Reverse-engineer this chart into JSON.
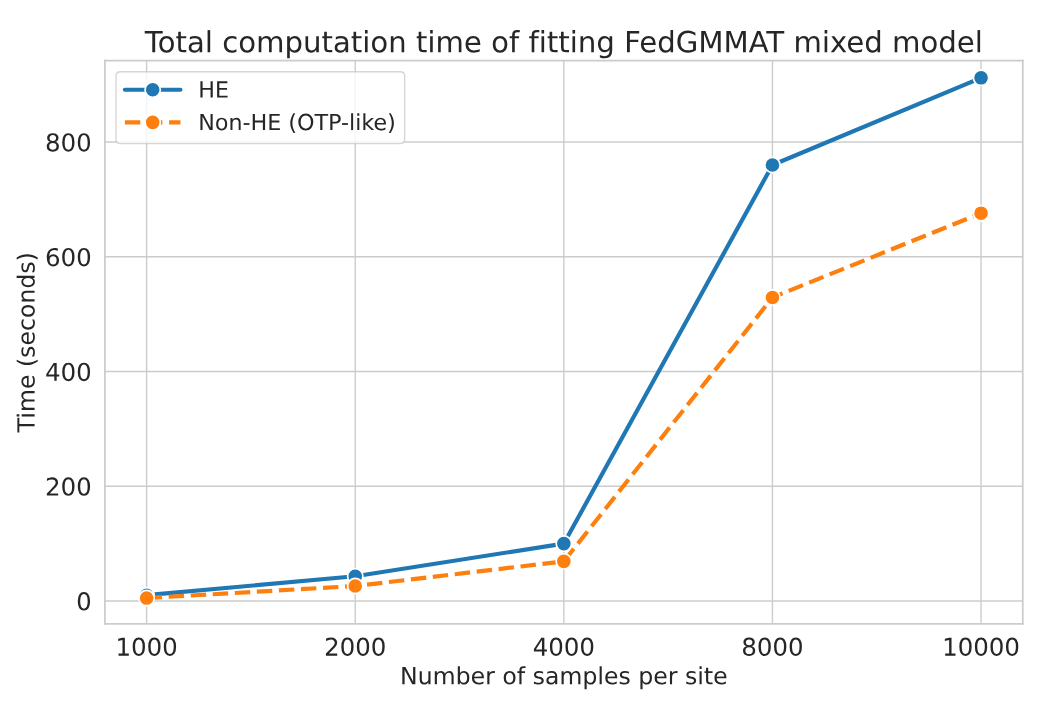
{
  "chart_data": {
    "type": "line",
    "title": "Total computation time of fitting FedGMMAT mixed model",
    "xlabel": "Number of samples per site",
    "ylabel": "Time (seconds)",
    "categories": [
      "1000",
      "2000",
      "4000",
      "8000",
      "10000"
    ],
    "series": [
      {
        "name": "HE",
        "color": "#1f77b4",
        "values": [
          10,
          43,
          100,
          760,
          912
        ],
        "line_style": "solid"
      },
      {
        "name": "Non-HE (OTP-like)",
        "color": "#ff7f0e",
        "values": [
          5,
          26,
          69,
          529,
          676
        ],
        "line_style": "dashed"
      }
    ],
    "ylim": [
      -40,
      942
    ],
    "yticks": [
      0,
      200,
      400,
      600,
      800
    ],
    "grid": true,
    "legend": "top left",
    "marker": "circle"
  }
}
